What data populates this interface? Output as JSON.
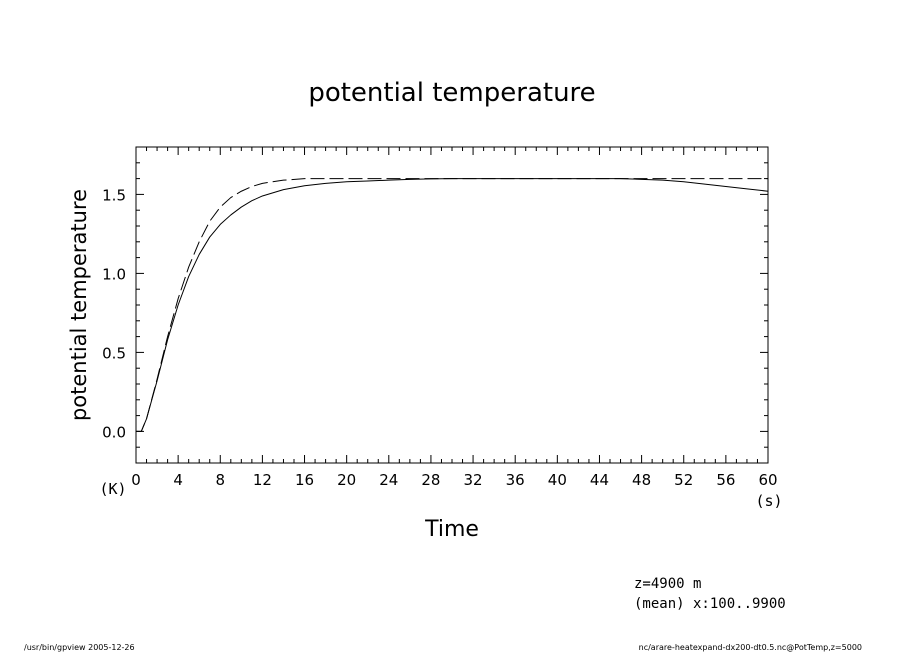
{
  "title": "potential temperature",
  "footer": {
    "left": "/usr/bin/gpview  2005-12-26",
    "right": "nc/arare-heatexpand-dx200-dt0.5.nc@PotTemp,z=5000"
  },
  "annotations": {
    "z_level": "z=4900 m",
    "mean_info": "(mean) x:100..9900"
  },
  "chart_data": {
    "type": "line",
    "title": "potential temperature",
    "xlabel": "Time",
    "x_unit": "(s)",
    "ylabel": "potential temperature",
    "y_unit": "(K)",
    "xlim": [
      0,
      60
    ],
    "ylim": [
      -0.2,
      1.8
    ],
    "x_ticks": [
      "0",
      "4",
      "8",
      "12",
      "16",
      "20",
      "24",
      "28",
      "32",
      "36",
      "40",
      "44",
      "48",
      "52",
      "56",
      "60"
    ],
    "y_ticks": [
      "0.0",
      "0.5",
      "1.0",
      "1.5"
    ],
    "grid": false,
    "legend": "none",
    "colors": {
      "line": "#000000",
      "background": "#ffffff"
    },
    "series": [
      {
        "style": "solid",
        "x": [
          0,
          0.5,
          1,
          2,
          3,
          4,
          5,
          6,
          7,
          8,
          9,
          10,
          11,
          12,
          14,
          16,
          18,
          20,
          22,
          24,
          26,
          28,
          30,
          32,
          34,
          36,
          38,
          40,
          42,
          44,
          46,
          48,
          50,
          52,
          54,
          56,
          58,
          60
        ],
        "y": [
          0.0,
          0.0,
          0.08,
          0.32,
          0.58,
          0.8,
          0.98,
          1.12,
          1.23,
          1.31,
          1.37,
          1.42,
          1.46,
          1.49,
          1.53,
          1.555,
          1.57,
          1.58,
          1.585,
          1.59,
          1.595,
          1.598,
          1.6,
          1.6,
          1.6,
          1.6,
          1.6,
          1.6,
          1.6,
          1.6,
          1.6,
          1.595,
          1.59,
          1.58,
          1.565,
          1.55,
          1.535,
          1.52
        ]
      },
      {
        "style": "dashed",
        "x": [
          0,
          0.5,
          1,
          2,
          3,
          4,
          5,
          6,
          7,
          8,
          9,
          10,
          11,
          12,
          14,
          16,
          18,
          20,
          22,
          24,
          26,
          28,
          30,
          32,
          34,
          36,
          38,
          40,
          42,
          44,
          46,
          48,
          50,
          52,
          54,
          56,
          58,
          60
        ],
        "y": [
          0.0,
          0.0,
          0.08,
          0.33,
          0.6,
          0.84,
          1.04,
          1.2,
          1.33,
          1.42,
          1.48,
          1.52,
          1.55,
          1.57,
          1.59,
          1.6,
          1.6,
          1.6,
          1.6,
          1.6,
          1.6,
          1.6,
          1.6,
          1.6,
          1.6,
          1.6,
          1.6,
          1.6,
          1.6,
          1.6,
          1.6,
          1.6,
          1.6,
          1.6,
          1.6,
          1.6,
          1.6,
          1.6
        ]
      }
    ]
  }
}
